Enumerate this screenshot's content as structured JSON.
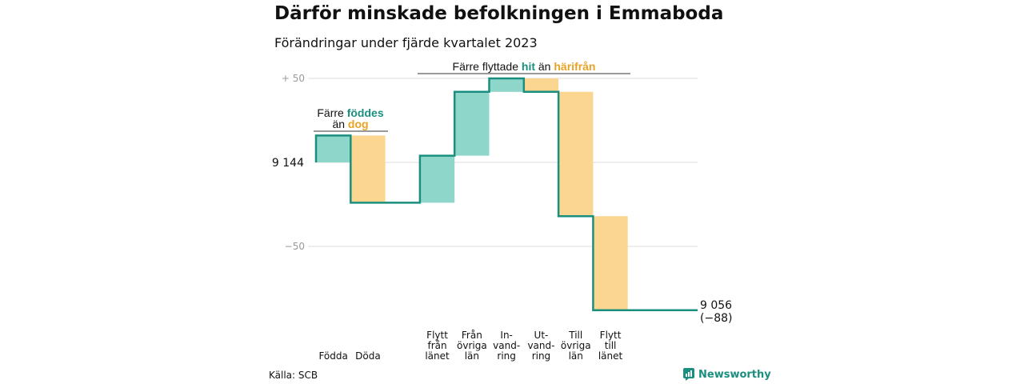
{
  "title": "Därför minskade befolkningen i Emmaboda",
  "subtitle": "Förändringar under fjärde kvartalet 2023",
  "source": "Källa: SCB",
  "brand": {
    "name": "Newsworthy",
    "icon": "newsworthy-logo-icon"
  },
  "colors": {
    "increase": "#8fd6ca",
    "decrease": "#fad691",
    "line": "#1a8f7f",
    "hit": "#1a8f7f",
    "harifran": "#e8a225",
    "grid": "#dddddd"
  },
  "annotations": {
    "births_vs_deaths": {
      "line1_prefix": "Färre",
      "line1_highlight": "föddes",
      "line2_prefix": "än",
      "line2_highlight": "dog"
    },
    "migration": {
      "prefix": "Färre flyttade",
      "highlight1": "hit",
      "middle": "än",
      "highlight2": "härifrån"
    }
  },
  "chart_data": {
    "type": "waterfall",
    "start_value": 9144,
    "start_label": "9 144",
    "end_value": 9056,
    "end_label": "9 056",
    "end_change_label": "(−88)",
    "y_ticks": [
      {
        "value": 50,
        "label": "+ 50"
      },
      {
        "value": -50,
        "label": "−50"
      }
    ],
    "ylim": [
      -92,
      52
    ],
    "grid": true,
    "steps": [
      {
        "label": [
          "Födda"
        ],
        "value": 16
      },
      {
        "label": [
          "Döda"
        ],
        "value": -40
      },
      {
        "label": [
          ""
        ],
        "value": 0
      },
      {
        "label": [
          "Flytt",
          "från",
          "länet"
        ],
        "value": 28
      },
      {
        "label": [
          "Från",
          "övriga",
          "län"
        ],
        "value": 38
      },
      {
        "label": [
          "In-",
          "vand-",
          "ring"
        ],
        "value": 8
      },
      {
        "label": [
          "Ut-",
          "vand-",
          "ring"
        ],
        "value": -8
      },
      {
        "label": [
          "Till",
          "övriga",
          "län"
        ],
        "value": -74
      },
      {
        "label": [
          "Flytt",
          "till",
          "länet"
        ],
        "value": -56
      }
    ]
  }
}
